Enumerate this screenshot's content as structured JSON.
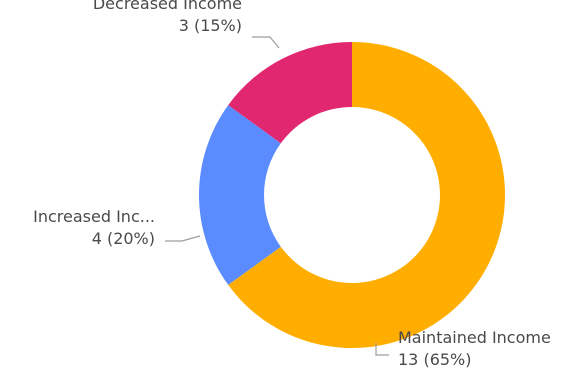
{
  "chart_data": {
    "type": "pie",
    "donut": true,
    "slices": [
      {
        "label": "Maintained Income",
        "value": 13,
        "percent": 65,
        "value_label": "13 (65%)",
        "color": "#FFAE00"
      },
      {
        "label": "Increased Inc...",
        "value": 4,
        "percent": 20,
        "value_label": "4 (20%)",
        "color": "#5B8CFF"
      },
      {
        "label": "Decreased Income",
        "value": 3,
        "percent": 15,
        "value_label": "3 (15%)",
        "color": "#E0276F"
      }
    ],
    "start_angle": "12 o'clock",
    "direction": "clockwise",
    "legend": "none (outside leader-line labels)"
  }
}
